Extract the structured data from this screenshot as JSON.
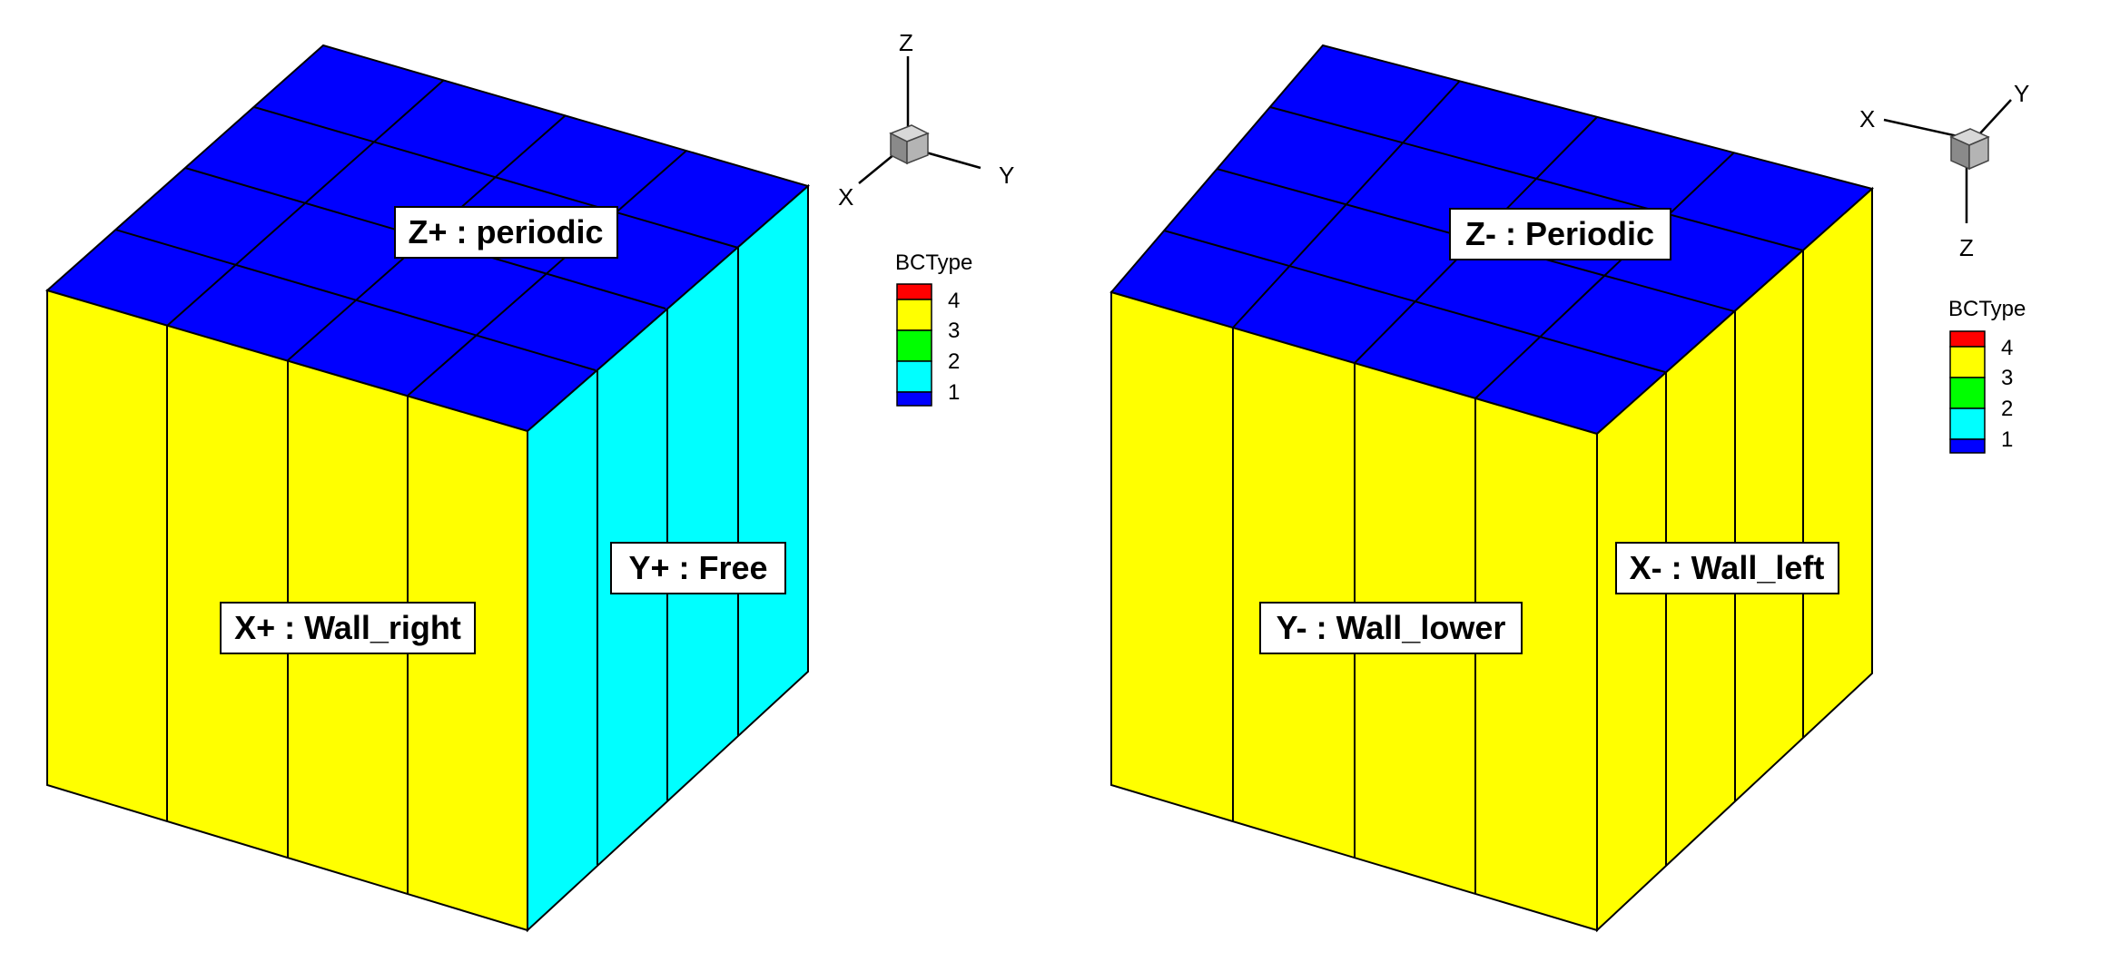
{
  "colors": {
    "top_face": "#0000ff",
    "side_wall": "#ffff00",
    "side_free": "#00ffff",
    "grid_line": "#000000",
    "label_box": "#ffffff"
  },
  "panels": [
    {
      "id": "left",
      "labels": {
        "top": "Z+ : periodic",
        "front": "X+ : Wall_right",
        "side": "Y+ : Free"
      },
      "axis_labels": {
        "a": "Z",
        "b": "Y",
        "c": "X"
      },
      "legend": {
        "title": "BCType",
        "entries": [
          {
            "value": "4",
            "color": "#ff0000"
          },
          {
            "value": "3",
            "color": "#ffff00"
          },
          {
            "value": "2",
            "color": "#00ff00"
          },
          {
            "value": "1",
            "color": "#00ffff"
          },
          {
            "value": "",
            "color": "#0000ff"
          }
        ]
      }
    },
    {
      "id": "right",
      "labels": {
        "top": "Z- : Periodic",
        "front": "Y- : Wall_lower",
        "side": "X- : Wall_left"
      },
      "axis_labels": {
        "a": "X",
        "b": "Y",
        "c": "Z"
      },
      "legend": {
        "title": "BCType",
        "entries": [
          {
            "value": "4",
            "color": "#ff0000"
          },
          {
            "value": "3",
            "color": "#ffff00"
          },
          {
            "value": "2",
            "color": "#00ff00"
          },
          {
            "value": "1",
            "color": "#00ffff"
          },
          {
            "value": "",
            "color": "#0000ff"
          }
        ]
      }
    }
  ]
}
